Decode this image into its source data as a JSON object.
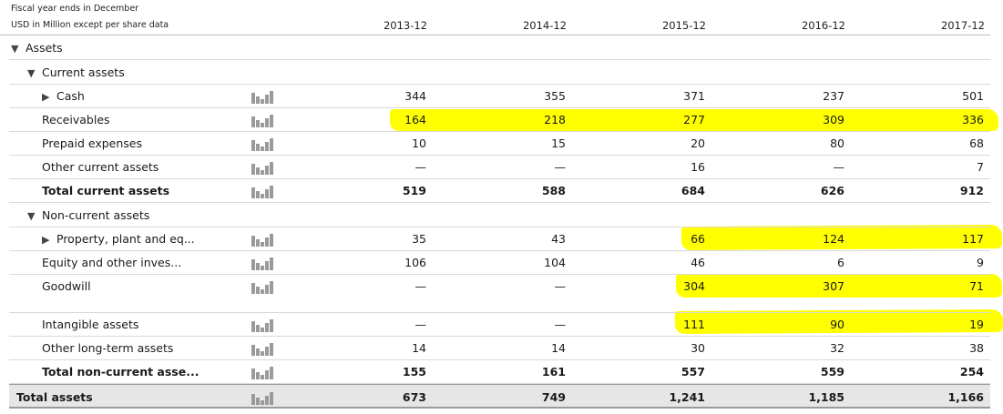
{
  "header": {
    "note_fiscal": "Fiscal year ends in December",
    "note_units": "USD in Million except per share data",
    "columns": [
      "2013-12",
      "2014-12",
      "2015-12",
      "2016-12",
      "2017-12"
    ]
  },
  "highlight_color": "#ffff00",
  "rows": [
    {
      "label": "Assets",
      "indent": 0,
      "triangle": "▼",
      "chart": false,
      "bold": false,
      "values": [
        "",
        "",
        "",
        "",
        ""
      ]
    },
    {
      "label": "Current assets",
      "indent": 1,
      "triangle": "▼",
      "chart": false,
      "bold": false,
      "values": [
        "",
        "",
        "",
        "",
        ""
      ]
    },
    {
      "label": "Cash",
      "indent": 2,
      "triangle": "▶",
      "chart": true,
      "bold": false,
      "values": [
        "344",
        "355",
        "371",
        "237",
        "501"
      ]
    },
    {
      "label": "Receivables",
      "indent": 1,
      "triangle": "",
      "chart": true,
      "bold": false,
      "values": [
        "164",
        "218",
        "277",
        "309",
        "336"
      ]
    },
    {
      "label": "Prepaid expenses",
      "indent": 1,
      "triangle": "",
      "chart": true,
      "bold": false,
      "values": [
        "10",
        "15",
        "20",
        "80",
        "68"
      ]
    },
    {
      "label": "Other current assets",
      "indent": 1,
      "triangle": "",
      "chart": true,
      "bold": false,
      "values": [
        "—",
        "—",
        "16",
        "—",
        "7"
      ]
    },
    {
      "label": "Total current assets",
      "indent": 1,
      "triangle": "",
      "chart": true,
      "bold": true,
      "values": [
        "519",
        "588",
        "684",
        "626",
        "912"
      ]
    },
    {
      "label": "Non-current assets",
      "indent": 1,
      "triangle": "▼",
      "chart": false,
      "bold": false,
      "values": [
        "",
        "",
        "",
        "",
        ""
      ]
    },
    {
      "label": "Property, plant and eq...",
      "indent": 2,
      "triangle": "▶",
      "chart": true,
      "bold": false,
      "values": [
        "35",
        "43",
        "66",
        "124",
        "117"
      ]
    },
    {
      "label": "Equity and other inves...",
      "indent": 1,
      "triangle": "",
      "chart": true,
      "bold": false,
      "values": [
        "106",
        "104",
        "46",
        "6",
        "9"
      ]
    },
    {
      "label": "Goodwill",
      "indent": 1,
      "triangle": "",
      "chart": true,
      "bold": false,
      "values": [
        "—",
        "—",
        "304",
        "307",
        "71"
      ]
    },
    {
      "label": "Intangible assets",
      "indent": 1,
      "triangle": "",
      "chart": true,
      "bold": false,
      "values": [
        "—",
        "—",
        "111",
        "90",
        "19"
      ]
    },
    {
      "label": "Other long-term assets",
      "indent": 1,
      "triangle": "",
      "chart": true,
      "bold": false,
      "values": [
        "14",
        "14",
        "30",
        "32",
        "38"
      ]
    },
    {
      "label": "Total non-current asse...",
      "indent": 1,
      "triangle": "",
      "chart": true,
      "bold": true,
      "values": [
        "155",
        "161",
        "557",
        "559",
        "254"
      ]
    },
    {
      "label": "Total assets",
      "indent": 0,
      "triangle": "",
      "chart": true,
      "bold": true,
      "total": true,
      "values": [
        "673",
        "749",
        "1,241",
        "1,185",
        "1,166"
      ]
    }
  ]
}
